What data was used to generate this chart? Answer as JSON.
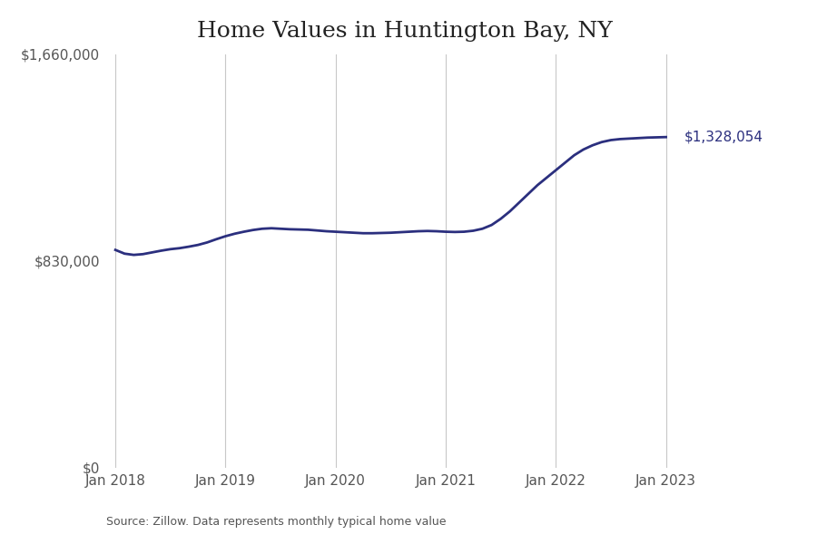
{
  "title": "Home Values in Huntington Bay, NY",
  "source_text": "Source: Zillow. Data represents monthly typical home value",
  "line_color": "#2b2f7e",
  "background_color": "#ffffff",
  "grid_color": "#c8c8c8",
  "annotation_text": "$1,328,054",
  "annotation_color": "#2b2f7e",
  "ylim": [
    0,
    1660000
  ],
  "yticks": [
    0,
    830000,
    1660000
  ],
  "ytick_labels": [
    "$0",
    "$830,000",
    "$1,660,000"
  ],
  "x_tick_labels": [
    "Jan 2018",
    "Jan 2019",
    "Jan 2020",
    "Jan 2021",
    "Jan 2022",
    "Jan 2023"
  ],
  "x_tick_positions": [
    0,
    12,
    24,
    36,
    48,
    60
  ],
  "months": [
    0,
    1,
    2,
    3,
    4,
    5,
    6,
    7,
    8,
    9,
    10,
    11,
    12,
    13,
    14,
    15,
    16,
    17,
    18,
    19,
    20,
    21,
    22,
    23,
    24,
    25,
    26,
    27,
    28,
    29,
    30,
    31,
    32,
    33,
    34,
    35,
    36,
    37,
    38,
    39,
    40,
    41,
    42,
    43,
    44,
    45,
    46,
    47,
    48,
    49,
    50,
    51,
    52,
    53,
    54,
    55,
    56,
    57,
    58,
    59,
    60
  ],
  "values": [
    875000,
    860000,
    855000,
    858000,
    865000,
    872000,
    878000,
    882000,
    888000,
    895000,
    905000,
    918000,
    930000,
    940000,
    948000,
    955000,
    960000,
    962000,
    960000,
    958000,
    957000,
    956000,
    953000,
    950000,
    948000,
    946000,
    944000,
    942000,
    942000,
    943000,
    944000,
    946000,
    948000,
    950000,
    951000,
    950000,
    948000,
    947000,
    948000,
    952000,
    960000,
    975000,
    1000000,
    1030000,
    1065000,
    1100000,
    1135000,
    1165000,
    1195000,
    1225000,
    1255000,
    1278000,
    1295000,
    1308000,
    1316000,
    1320000,
    1322000,
    1324000,
    1326000,
    1327000,
    1328054
  ],
  "xlim": [
    -1,
    64
  ],
  "title_fontsize": 18,
  "tick_fontsize": 11,
  "annotation_fontsize": 11,
  "source_fontsize": 9
}
